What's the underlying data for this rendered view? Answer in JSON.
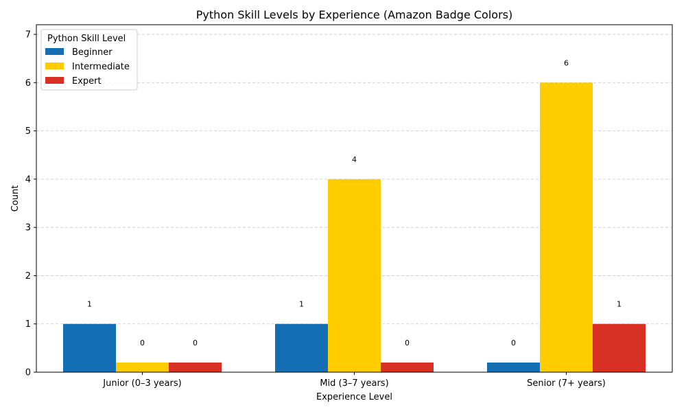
{
  "chart_data": {
    "type": "bar",
    "title": "Python Skill Levels by Experience (Amazon Badge Colors)",
    "xlabel": "Experience Level",
    "ylabel": "Count",
    "categories": [
      "Junior (0–3 years)",
      "Mid (3–7 years)",
      "Senior (7+ years)"
    ],
    "series": [
      {
        "name": "Beginner",
        "values": [
          1,
          1,
          0
        ],
        "color": "#146eb4"
      },
      {
        "name": "Intermediate",
        "values": [
          0,
          4,
          6
        ],
        "color": "#ffcc00"
      },
      {
        "name": "Expert",
        "values": [
          0,
          0,
          1
        ],
        "color": "#d93025"
      }
    ],
    "zero_value_display": 0.2,
    "ylim": [
      0,
      7.2
    ],
    "yticks": [
      0,
      1,
      2,
      3,
      4,
      5,
      6,
      7
    ],
    "grid": "y-dashed",
    "legend": {
      "title": "Python Skill Level",
      "placement": "top-left"
    }
  }
}
